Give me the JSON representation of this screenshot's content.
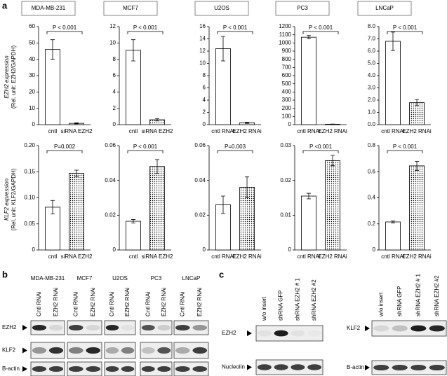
{
  "panel_labels": [
    "a",
    "b",
    "c"
  ],
  "cell_lines": [
    "MDA-MB-231",
    "MCF7",
    "U2OS",
    "PC3",
    "LNCaP"
  ],
  "y_axis_titles": [
    [
      "EZH2 expression",
      "(Rel. unit: EZH2/GAPDH)"
    ],
    [
      "KLF2 expression",
      "(Rel. unit: KLF2/GAPDH)"
    ]
  ],
  "chart_data": [
    {
      "type": "bar",
      "categories": [
        "cntl",
        "siRNA EZH2"
      ],
      "values": [
        46,
        0.8
      ],
      "errors": [
        6,
        0.3
      ],
      "ylim": [
        0,
        60
      ],
      "yticks": [
        0,
        10,
        20,
        30,
        40,
        50,
        60
      ],
      "annotation": "P < 0.001",
      "patterns": [
        "none",
        "dots"
      ]
    },
    {
      "type": "bar",
      "categories": [
        "cntl",
        "siRNA EZH2"
      ],
      "values": [
        9.1,
        0.6
      ],
      "errors": [
        1.3,
        0.15
      ],
      "ylim": [
        0,
        12
      ],
      "yticks": [
        0,
        2,
        4,
        6,
        8,
        10,
        12
      ],
      "annotation": "P < 0.001",
      "patterns": [
        "none",
        "dots"
      ]
    },
    {
      "type": "bar",
      "categories": [
        "cntl RNAi",
        "EZH2 RNAi"
      ],
      "values": [
        12.4,
        0.3
      ],
      "errors": [
        2,
        0.1
      ],
      "ylim": [
        0,
        16
      ],
      "yticks": [
        0,
        2,
        4,
        6,
        8,
        10,
        12,
        14,
        16
      ],
      "annotation": "P < 0.001",
      "patterns": [
        "none",
        "dots"
      ]
    },
    {
      "type": "bar",
      "categories": [
        "cntl RNAi",
        "EZH2 RNAi"
      ],
      "values": [
        1070,
        5
      ],
      "errors": [
        20,
        2
      ],
      "ylim": [
        0,
        1200
      ],
      "yticks": [
        0,
        100,
        200,
        300,
        400,
        500,
        600,
        700,
        800,
        900,
        1000,
        1100,
        1200
      ],
      "annotation": "P < 0.001",
      "patterns": [
        "none",
        "dots"
      ]
    },
    {
      "type": "bar",
      "categories": [
        "cntl RNAi",
        "EZH2 RNAi"
      ],
      "values": [
        6.8,
        1.8
      ],
      "errors": [
        0.75,
        0.25
      ],
      "ylim": [
        0,
        8
      ],
      "yticks": [
        {
          "value": 0,
          "label": "0.0"
        },
        {
          "value": 1,
          "label": "1.0"
        },
        {
          "value": 2,
          "label": "2.0"
        },
        {
          "value": 3,
          "label": "3.0"
        },
        {
          "value": 4,
          "label": "4.0"
        },
        {
          "value": 5,
          "label": "5.0"
        },
        {
          "value": 6,
          "label": "6.0"
        },
        {
          "value": 7,
          "label": "7.0"
        },
        {
          "value": 8,
          "label": "8.0"
        }
      ],
      "annotation": "P < 0.001",
      "patterns": [
        "none",
        "dots"
      ]
    },
    {
      "type": "bar",
      "categories": [
        "cntl",
        "siRNA EZH2"
      ],
      "values": [
        0.082,
        0.147
      ],
      "errors": [
        0.013,
        0.006
      ],
      "ylim": [
        0,
        0.2
      ],
      "yticks": [
        0,
        0.05,
        {
          "value": 0.1,
          "label": "0.10"
        },
        0.15,
        {
          "value": 0.2,
          "label": "0.20"
        }
      ],
      "annotation": "P=0.002",
      "patterns": [
        "none",
        "dots"
      ]
    },
    {
      "type": "bar",
      "categories": [
        "cntl",
        "siRNA EZH2"
      ],
      "values": [
        0.0165,
        0.048
      ],
      "errors": [
        0.001,
        0.004
      ],
      "ylim": [
        0,
        0.06
      ],
      "yticks": [
        0,
        0.02,
        0.04,
        0.06
      ],
      "annotation": "P < 0.001",
      "patterns": [
        "none",
        "dots"
      ]
    },
    {
      "type": "bar",
      "categories": [
        "cntl RNAi",
        "EZH2 RNAi"
      ],
      "values": [
        0.026,
        0.036
      ],
      "errors": [
        0.005,
        0.006
      ],
      "ylim": [
        0,
        0.06
      ],
      "yticks": [
        0,
        0.02,
        0.04,
        0.06
      ],
      "annotation": "P=0.003",
      "patterns": [
        "none",
        "dots"
      ]
    },
    {
      "type": "bar",
      "categories": [
        "cntl RNAi",
        "EZH2 RNAi"
      ],
      "values": [
        0.0155,
        0.0257
      ],
      "errors": [
        0.0008,
        0.0015
      ],
      "ylim": [
        0,
        0.03
      ],
      "yticks": [
        0,
        0.01,
        0.02,
        0.03
      ],
      "annotation": "P <0.001",
      "patterns": [
        "none",
        "dots"
      ]
    },
    {
      "type": "bar",
      "categories": [
        "cntl RNAi",
        "EZH2 RNAi"
      ],
      "values": [
        0.215,
        0.645
      ],
      "errors": [
        0.007,
        0.035
      ],
      "ylim": [
        0,
        0.8
      ],
      "yticks": [
        0,
        0.2,
        0.4,
        0.6,
        0.8
      ],
      "annotation": "P < 0.001",
      "patterns": [
        "none",
        "dots"
      ]
    }
  ],
  "panel_b": {
    "cell_lines": [
      "MDA-MB-231",
      "MCF7",
      "U2OS",
      "PC3",
      "LNCaP"
    ],
    "lanes": [
      "Cntl RNAi",
      "EZH2 RNAi"
    ],
    "rows": [
      "EZH2",
      "KLF2",
      "B-actin"
    ]
  },
  "panel_c": {
    "lanes": [
      "w/o insert",
      "shRNA GFP",
      "shRNA EZH2 # 1",
      "shRNA EZH2 #2"
    ],
    "left_rows": [
      "EZH2",
      "Nucleolin"
    ],
    "right_rows": [
      "KLF2",
      "B-actin"
    ]
  }
}
